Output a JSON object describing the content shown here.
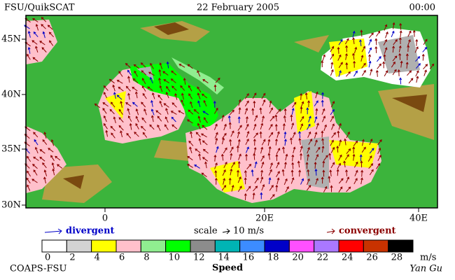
{
  "header": {
    "source": "FSU/QuikSCAT",
    "date": "22 February 2005",
    "time": "00:00"
  },
  "map": {
    "lat_labels": [
      "45N",
      "40N",
      "35N",
      "30N"
    ],
    "lon_labels": [
      "0",
      "20E",
      "40E"
    ]
  },
  "legend": {
    "divergent": "divergent",
    "scale": "scale",
    "scale_value": "10 m/s",
    "convergent": "convergent"
  },
  "colorbar": {
    "ticks": [
      0,
      2,
      4,
      6,
      8,
      10,
      12,
      14,
      16,
      18,
      20,
      22,
      24,
      26,
      28
    ],
    "unit": "m/s",
    "label": "Speed",
    "colors": [
      "#ffffff",
      "#d3d3d3",
      "#ffff00",
      "#ffc0cb",
      "#90ee90",
      "#00ff00",
      "#8c8c8c",
      "#00b4b4",
      "#3c8cff",
      "#0000c8",
      "#ff50ff",
      "#aa78ff",
      "#ff0000",
      "#c83200",
      "#000000"
    ]
  },
  "footer": {
    "org": "COAPS-FSU",
    "author": "Yan Gu"
  }
}
